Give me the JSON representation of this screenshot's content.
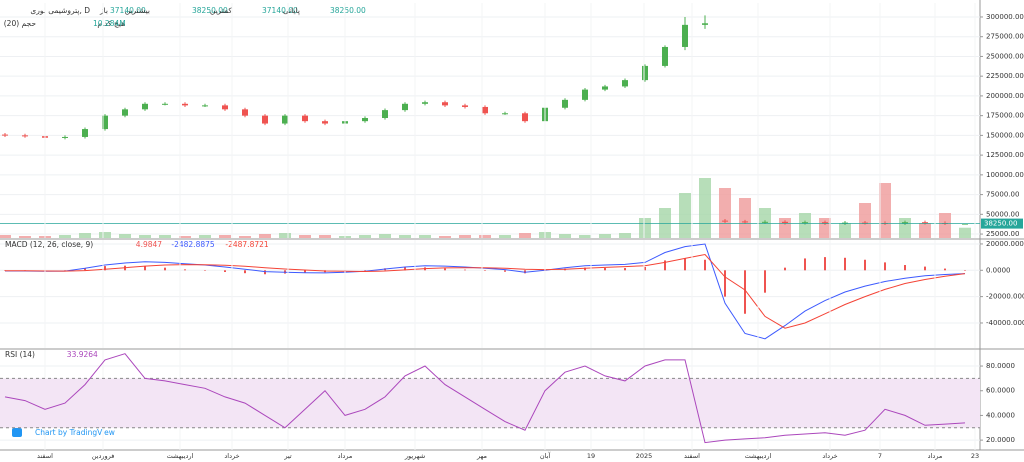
{
  "chart_data": [
    {
      "type": "candlestick",
      "title": "پتروشیمی نوری, D",
      "ohlc_labels": [
        {
          "name": "باز",
          "value": "37140.00"
        },
        {
          "name": "بیشترین",
          "value": "38250.00"
        },
        {
          "name": "کمترین",
          "value": "37140.00"
        },
        {
          "name": "پایانی",
          "value": "38250.00"
        }
      ],
      "volume_title": "حجم (20)",
      "volume_text": "هیچ کدام",
      "volume_value": "10.284M",
      "last_price_label": "38250.00",
      "up_color": "#4caf50",
      "down_color": "#ef5350",
      "open": [
        151000,
        150000,
        149000,
        147000,
        148000,
        158000,
        175000,
        183000,
        190000,
        190000,
        188000,
        188000,
        183000,
        175000,
        165000,
        175000,
        168000,
        165000,
        168000,
        172000,
        182000,
        190000,
        192000,
        188000,
        186000,
        178000,
        178000,
        168000,
        185000,
        195000,
        208000,
        212000,
        220000,
        238000,
        262000,
        290000,
        42000,
        41000,
        40000,
        40500,
        39000,
        40000,
        38500,
        39500,
        39000,
        38500,
        40000,
        39000,
        37140
      ],
      "high": [
        153000,
        152000,
        151000,
        150000,
        160000,
        177000,
        185000,
        192000,
        192000,
        192000,
        190000,
        190000,
        185000,
        177000,
        177000,
        177000,
        170000,
        170000,
        174000,
        184000,
        192000,
        194000,
        194000,
        190000,
        188000,
        180000,
        180000,
        187000,
        197000,
        210000,
        214000,
        222000,
        240000,
        264000,
        300000,
        302000,
        44000,
        43000,
        42500,
        42500,
        42000,
        42000,
        41500,
        41500,
        41000,
        42000,
        42000,
        41000,
        38250
      ],
      "low": [
        148000,
        147000,
        145000,
        145000,
        146000,
        156000,
        173000,
        181000,
        188000,
        186000,
        186000,
        181000,
        173000,
        163000,
        163000,
        166000,
        163000,
        163000,
        166000,
        170000,
        180000,
        188000,
        186000,
        184000,
        176000,
        176000,
        166000,
        166000,
        183000,
        193000,
        206000,
        210000,
        218000,
        236000,
        258000,
        285000,
        39000,
        38000,
        38000,
        37000,
        37000,
        36500,
        36500,
        37000,
        36500,
        36500,
        37000,
        36500,
        37140
      ],
      "close": [
        150000,
        149000,
        147000,
        148000,
        158000,
        175000,
        183000,
        190000,
        190000,
        188000,
        188000,
        183000,
        175000,
        165000,
        175000,
        168000,
        165000,
        168000,
        172000,
        182000,
        190000,
        192000,
        188000,
        186000,
        178000,
        178000,
        168000,
        185000,
        195000,
        208000,
        212000,
        220000,
        238000,
        262000,
        290000,
        292000,
        41000,
        40000,
        40500,
        39000,
        40000,
        38500,
        39500,
        39000,
        38500,
        40000,
        39000,
        38500,
        38250
      ],
      "series": [
        {
          "name": "حجم (20)",
          "axis": "y2",
          "values": [
            3,
            2,
            2,
            3,
            5,
            6,
            4,
            3,
            3,
            2,
            3,
            3,
            2,
            4,
            5,
            3,
            3,
            2,
            3,
            4,
            3,
            3,
            2,
            3,
            3,
            3,
            5,
            6,
            4,
            3,
            4,
            5,
            20,
            30,
            45,
            60,
            50,
            40,
            30,
            20,
            25,
            20,
            15,
            35,
            55,
            20,
            15,
            25,
            10.284
          ]
        }
      ],
      "xlim": [
        -0.25,
        48.75
      ],
      "ylim": [
        20000,
        317700
      ],
      "y2lim": [
        0,
        235
      ],
      "yticks": [
        {
          "value": 300000,
          "label": "300000.00"
        },
        {
          "value": 275000,
          "label": "275000.00"
        },
        {
          "value": 250000,
          "label": "250000.00"
        },
        {
          "value": 225000,
          "label": "225000.00"
        },
        {
          "value": 200000,
          "label": "200000.00"
        },
        {
          "value": 175000,
          "label": "175000.00"
        },
        {
          "value": 150000,
          "label": "150000.00"
        },
        {
          "value": 125000,
          "label": "125000.00"
        },
        {
          "value": 100000,
          "label": "100000.00"
        },
        {
          "value": 75000,
          "label": "75000.00"
        },
        {
          "value": 50000,
          "label": "50000.00"
        },
        {
          "value": 25000,
          "label": "25000.00"
        }
      ],
      "grid": true
    },
    {
      "type": "line",
      "title": "MACD (12, 26, close, 9)",
      "series": [
        {
          "name": "histogram",
          "kind": "bar",
          "color": "#ef5350",
          "last_label": "4.9847",
          "values": [
            -200,
            -100,
            -300,
            0,
            1700,
            3200,
            3500,
            3300,
            2000,
            700,
            -200,
            -1300,
            -2200,
            -3000,
            -2500,
            -2000,
            -1500,
            -700,
            100,
            1500,
            2200,
            2200,
            1400,
            500,
            -400,
            -1100,
            -2300,
            -500,
            1200,
            2000,
            1800,
            1700,
            2500,
            7500,
            9000,
            8000,
            -20000,
            -33000,
            -17000,
            2000,
            9000,
            10000,
            9500,
            8000,
            6000,
            4000,
            2800,
            1300,
            4.9847
          ]
        },
        {
          "name": "MACD",
          "kind": "line",
          "color": "#3d5afe",
          "last_label": "-2482.8875",
          "values": [
            -500,
            -500,
            -800,
            -600,
            1500,
            4000,
            5500,
            6500,
            6000,
            5000,
            4000,
            2500,
            800,
            -1000,
            -1500,
            -1800,
            -2000,
            -1500,
            -800,
            1000,
            2500,
            3500,
            3200,
            2500,
            1500,
            500,
            -1500,
            0,
            2000,
            3500,
            4000,
            4500,
            6000,
            13500,
            18000,
            20000,
            -25000,
            -48000,
            -52000,
            -42000,
            -31000,
            -23000,
            -16500,
            -12000,
            -8500,
            -6000,
            -4200,
            -3200,
            -2482.8875
          ]
        },
        {
          "name": "signal",
          "kind": "line",
          "color": "#f44336",
          "last_label": "-2487.8721",
          "values": [
            -300,
            -400,
            -500,
            -600,
            -200,
            800,
            2000,
            3200,
            4000,
            4300,
            4200,
            3800,
            3000,
            2000,
            1000,
            200,
            -500,
            -800,
            -900,
            -500,
            300,
            1300,
            1800,
            2000,
            1900,
            1600,
            800,
            500,
            800,
            1500,
            2200,
            2800,
            3500,
            6000,
            9000,
            12000,
            -5000,
            -15000,
            -35000,
            -44000,
            -40000,
            -33000,
            -26000,
            -20000,
            -14500,
            -10000,
            -7000,
            -4500,
            -2487.8721
          ]
        }
      ],
      "xlim": [
        -0.25,
        48.75
      ],
      "ylim": [
        -59000,
        23000
      ],
      "yticks": [
        {
          "value": 20000,
          "label": "20000.0000"
        },
        {
          "value": 0,
          "label": "0.0000"
        },
        {
          "value": -20000,
          "label": "-20000.0000"
        },
        {
          "value": -40000,
          "label": "-40000.0000"
        }
      ],
      "grid": true
    },
    {
      "type": "line",
      "title": "RSI (14)",
      "series": [
        {
          "name": "RSI",
          "kind": "line",
          "color": "#ab47bc",
          "last_label": "33.9264",
          "values": [
            55,
            52,
            45,
            50,
            65,
            85,
            90,
            70,
            68,
            65,
            62,
            55,
            50,
            40,
            30,
            45,
            60,
            40,
            45,
            55,
            72,
            80,
            65,
            55,
            45,
            35,
            28,
            60,
            75,
            80,
            72,
            68,
            80,
            85,
            85,
            18,
            20,
            21,
            22,
            24,
            25,
            26,
            24,
            28,
            45,
            40,
            32,
            33,
            33.9264
          ]
        }
      ],
      "levels": [
        30,
        70
      ],
      "band_color": "#f3e5f5",
      "xlim": [
        -0.25,
        48.75
      ],
      "ylim": [
        12,
        93
      ],
      "yticks": [
        {
          "value": 80,
          "label": "80.0000"
        },
        {
          "value": 60,
          "label": "60.0000"
        },
        {
          "value": 40,
          "label": "40.0000"
        },
        {
          "value": 20,
          "label": "20.0000"
        }
      ],
      "xticks": [
        {
          "value": 2,
          "label": "اسفند"
        },
        {
          "value": 4.9,
          "label": "فروردین"
        },
        {
          "value": 8.75,
          "label": "اردیبهشت"
        },
        {
          "value": 11.35,
          "label": "خرداد"
        },
        {
          "value": 14.15,
          "label": "تیر"
        },
        {
          "value": 17,
          "label": "مرداد"
        },
        {
          "value": 20.5,
          "label": "شهریور"
        },
        {
          "value": 23.85,
          "label": "مهر"
        },
        {
          "value": 27,
          "label": "آبان"
        },
        {
          "value": 29.3,
          "label": "19"
        },
        {
          "value": 31.95,
          "label": "2025"
        },
        {
          "value": 34.35,
          "label": "اسفند"
        },
        {
          "value": 37.65,
          "label": "اردیبهشت"
        },
        {
          "value": 41.25,
          "label": "خرداد"
        },
        {
          "value": 43.75,
          "label": "7"
        },
        {
          "value": 46.5,
          "label": "مرداد"
        },
        {
          "value": 48.5,
          "label": "23"
        }
      ],
      "grid": true
    }
  ],
  "watermark": "Chart by TradingView"
}
